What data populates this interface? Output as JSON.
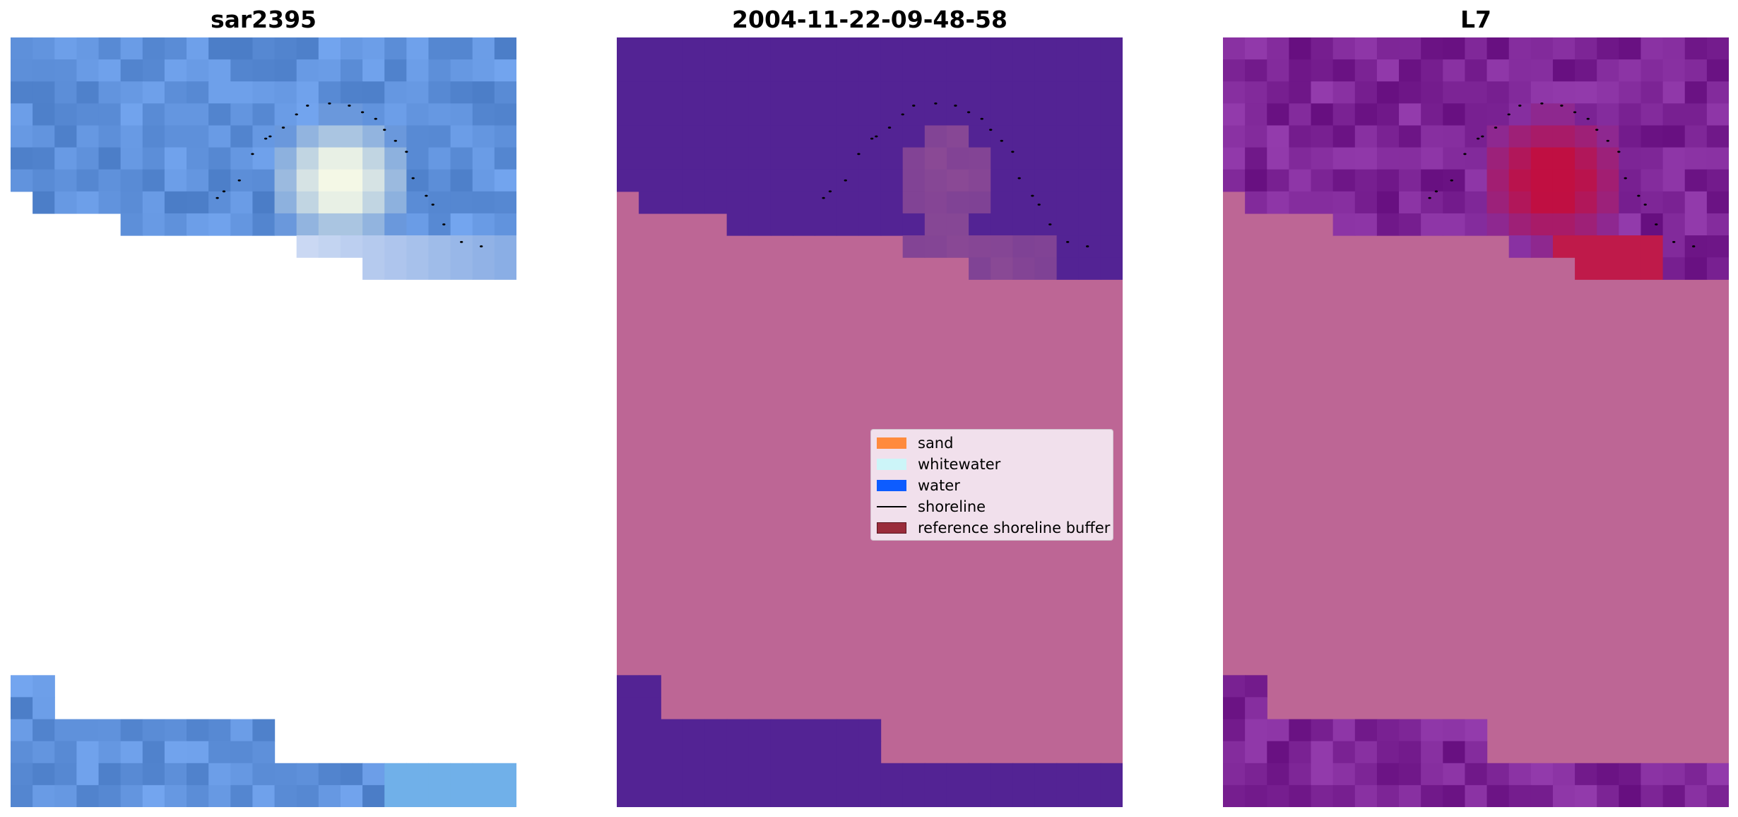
{
  "panels": [
    {
      "title": "sar2395",
      "kind": "rgb"
    },
    {
      "title": "2004-11-22-09-48-58",
      "kind": "classified"
    },
    {
      "title": "L7",
      "kind": "mndwi"
    }
  ],
  "legend": {
    "items": [
      {
        "label": "sand",
        "color": "#ff8a3d",
        "shape": "patch"
      },
      {
        "label": "whitewater",
        "color": "#ccf5f8",
        "shape": "patch"
      },
      {
        "label": "water",
        "color": "#0d5cff",
        "shape": "patch"
      },
      {
        "label": "shoreline",
        "color": "#000000",
        "shape": "line"
      },
      {
        "label": "reference shoreline buffer",
        "color": "#9a2c3b",
        "shape": "patch"
      }
    ]
  },
  "colors": {
    "mask": "#bd6695",
    "deep": "#532394",
    "rgb_blue": "#5f91db",
    "shoreline_dots": "#000000",
    "hot": "#c10f41"
  }
}
